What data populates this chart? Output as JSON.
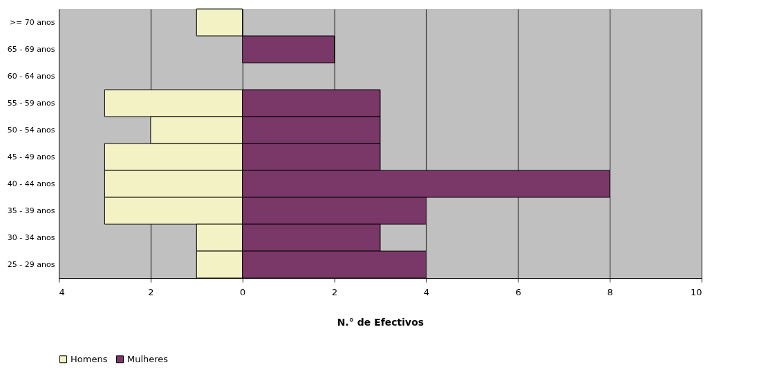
{
  "chart_data": {
    "type": "bar",
    "orientation": "horizontal",
    "xlabel": "N.° de Efectivos",
    "categories": [
      ">= 70 anos",
      "65 - 69 anos",
      "60 - 64 anos",
      "55 - 59 anos",
      "50 - 54 anos",
      "45 - 49 anos",
      "40 - 44 anos",
      "35 - 39 anos",
      "30 - 34 anos",
      "25 - 29 anos"
    ],
    "series": [
      {
        "name": "Homens",
        "color": "#f2f2c4",
        "values": [
          -1,
          0,
          0,
          -3,
          -2,
          -3,
          -3,
          -3,
          -1,
          -1
        ]
      },
      {
        "name": "Mulheres",
        "color": "#7a3868",
        "values": [
          0,
          2,
          0,
          3,
          3,
          3,
          8,
          4,
          3,
          4
        ]
      }
    ],
    "xlim": [
      -4,
      10
    ],
    "xticks": [
      {
        "value": -4,
        "label": "4"
      },
      {
        "value": -2,
        "label": "2"
      },
      0,
      2,
      4,
      6,
      8,
      10
    ],
    "stacked": true,
    "grid": "x",
    "legend": "bottom"
  }
}
